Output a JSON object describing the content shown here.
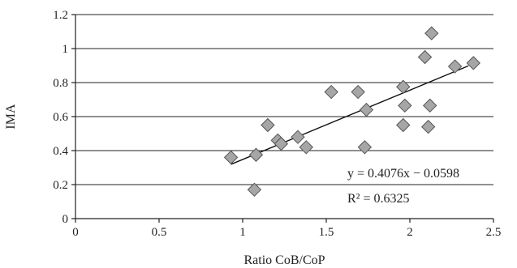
{
  "chart_data": {
    "type": "scatter",
    "xlabel": "Ratio CoB/CoP",
    "ylabel": "IMA",
    "xlim": [
      0,
      2.5
    ],
    "ylim": [
      0,
      1.2
    ],
    "x_ticks": [
      0,
      0.5,
      1,
      1.5,
      2,
      2.5
    ],
    "x_tick_labels": [
      "0",
      "0.5",
      "1",
      "1.5",
      "2",
      "2.5"
    ],
    "y_ticks": [
      0,
      0.2,
      0.4,
      0.6,
      0.8,
      1,
      1.2
    ],
    "y_tick_labels": [
      "0",
      "0.2",
      "0.4",
      "0.6",
      "0.8",
      "1",
      "1.2"
    ],
    "grid": "horizontal",
    "marker": "diamond",
    "marker_color": "#a6a6a6",
    "trendline": {
      "slope": 0.4076,
      "intercept": -0.0598,
      "x_range": [
        0.93,
        2.35
      ],
      "equation": "y = 0.4076x − 0.0598",
      "r_squared_label": "R² = 0.6325"
    },
    "points": [
      {
        "x": 0.93,
        "y": 0.36
      },
      {
        "x": 1.07,
        "y": 0.17
      },
      {
        "x": 1.08,
        "y": 0.375
      },
      {
        "x": 1.15,
        "y": 0.55
      },
      {
        "x": 1.21,
        "y": 0.46
      },
      {
        "x": 1.23,
        "y": 0.44
      },
      {
        "x": 1.33,
        "y": 0.48
      },
      {
        "x": 1.38,
        "y": 0.42
      },
      {
        "x": 1.53,
        "y": 0.745
      },
      {
        "x": 1.69,
        "y": 0.745
      },
      {
        "x": 1.73,
        "y": 0.42
      },
      {
        "x": 1.74,
        "y": 0.64
      },
      {
        "x": 1.96,
        "y": 0.775
      },
      {
        "x": 1.96,
        "y": 0.55
      },
      {
        "x": 1.97,
        "y": 0.665
      },
      {
        "x": 2.09,
        "y": 0.95
      },
      {
        "x": 2.11,
        "y": 0.54
      },
      {
        "x": 2.12,
        "y": 0.665
      },
      {
        "x": 2.13,
        "y": 1.09
      },
      {
        "x": 2.27,
        "y": 0.895
      },
      {
        "x": 2.38,
        "y": 0.915
      }
    ]
  }
}
